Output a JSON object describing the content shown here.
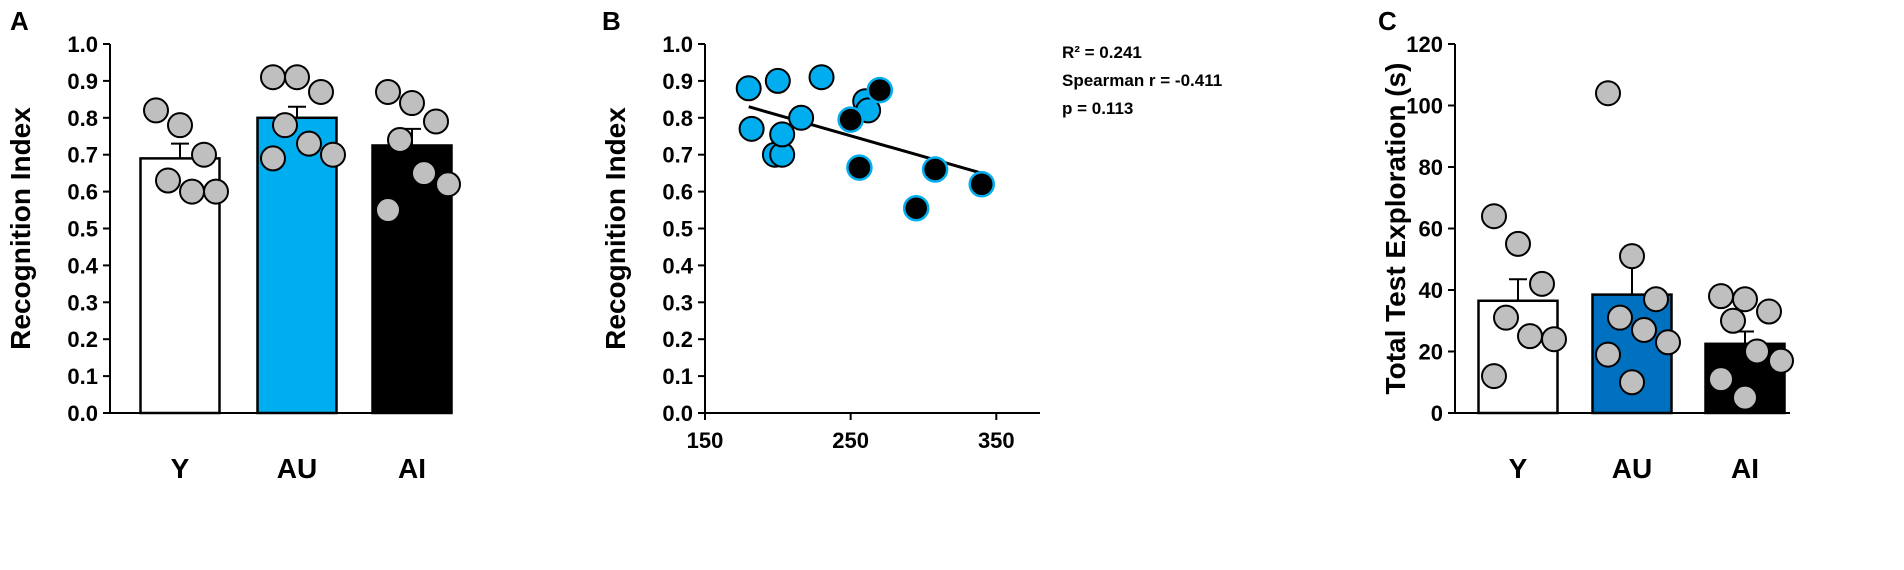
{
  "chart_data": [
    {
      "panel": "A",
      "type": "bar",
      "ylabel": "Recognition Index",
      "ylim": [
        0,
        1
      ],
      "ytick_step": 0.1,
      "yticks": [
        "0.0",
        "0.1",
        "0.2",
        "0.3",
        "0.4",
        "0.5",
        "0.6",
        "0.7",
        "0.8",
        "0.9",
        "1.0"
      ],
      "categories": [
        "Y",
        "AU",
        "AI"
      ],
      "values": [
        0.69,
        0.8,
        0.725
      ],
      "errors": [
        0.04,
        0.03,
        0.045
      ],
      "bar_colors": [
        "#ffffff",
        "#00adef",
        "#000000"
      ],
      "points": [
        [
          0.82,
          0.78,
          0.7,
          0.63,
          0.6,
          0.6
        ],
        [
          0.91,
          0.91,
          0.87,
          0.78,
          0.73,
          0.7,
          0.69
        ],
        [
          0.87,
          0.84,
          0.79,
          0.74,
          0.65,
          0.62,
          0.55
        ]
      ]
    },
    {
      "panel": "B",
      "type": "scatter",
      "ylabel": "Recognition Index",
      "xlim": [
        150,
        380
      ],
      "ylim": [
        0,
        1
      ],
      "xticks": [
        "150",
        "250",
        "350"
      ],
      "yticks": [
        "0.0",
        "0.1",
        "0.2",
        "0.3",
        "0.4",
        "0.5",
        "0.6",
        "0.7",
        "0.8",
        "0.9",
        "1.0"
      ],
      "annotations": [
        "R² = 0.241",
        "Spearman r = -0.411",
        "p = 0.113"
      ],
      "fit_line": [
        [
          180,
          0.83
        ],
        [
          340,
          0.65
        ]
      ],
      "points_au": [
        [
          180,
          0.88
        ],
        [
          182,
          0.77
        ],
        [
          200,
          0.9
        ],
        [
          230,
          0.91
        ],
        [
          198,
          0.7
        ],
        [
          203,
          0.7
        ],
        [
          203,
          0.755
        ],
        [
          216,
          0.8
        ],
        [
          260,
          0.845
        ],
        [
          262,
          0.82
        ]
      ],
      "points_ai": [
        [
          250,
          0.795
        ],
        [
          270,
          0.875
        ],
        [
          256,
          0.665
        ],
        [
          308,
          0.66
        ],
        [
          340,
          0.62
        ],
        [
          295,
          0.555
        ]
      ],
      "color_au": "#00adef",
      "color_ai": "#000000"
    },
    {
      "panel": "C",
      "type": "bar",
      "ylabel": "Total Test Exploration (s)",
      "ylim": [
        0,
        120
      ],
      "ytick_step": 20,
      "yticks": [
        "0",
        "20",
        "40",
        "60",
        "80",
        "100",
        "120"
      ],
      "categories": [
        "Y",
        "AU",
        "AI"
      ],
      "values": [
        36.5,
        38.5,
        22.5
      ],
      "errors": [
        7,
        11,
        4
      ],
      "bar_colors": [
        "#ffffff",
        "#0070c0",
        "#000000"
      ],
      "points": [
        [
          64,
          55,
          42,
          31,
          25,
          24,
          12
        ],
        [
          104,
          51,
          37,
          31,
          27,
          23,
          19,
          10
        ],
        [
          38,
          37,
          33,
          30,
          20,
          17,
          11,
          5
        ]
      ]
    }
  ],
  "panel_letters": [
    "A",
    "B",
    "C"
  ]
}
